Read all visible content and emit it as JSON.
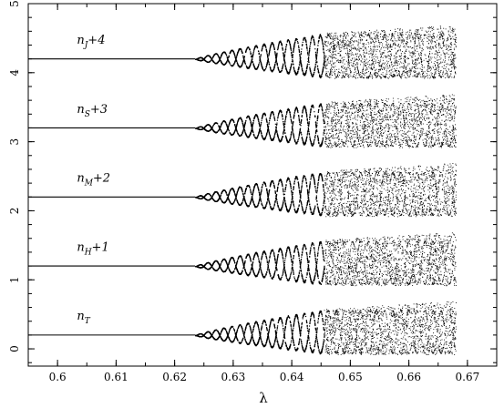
{
  "chart_data": {
    "type": "scatter",
    "title": "",
    "xlabel": "λ",
    "ylabel": "",
    "xlim": [
      0.595,
      0.675
    ],
    "ylim": [
      -0.25,
      5.0
    ],
    "xticks": [
      "0.6",
      "0.61",
      "0.62",
      "0.63",
      "0.64",
      "0.65",
      "0.66",
      "0.67"
    ],
    "yticks": [
      "0",
      "1",
      "2",
      "3",
      "4",
      "5"
    ],
    "grid": false,
    "legend": "none",
    "marker_color": "#000000",
    "bifurcation_start_lambda": 0.6235,
    "chaos_onset_lambda": 0.6455,
    "series": [
      {
        "name_main": "n",
        "name_sub": "T",
        "name_suffix": "",
        "offset": 0,
        "baseline": 0.2
      },
      {
        "name_main": "n",
        "name_sub": "H",
        "name_suffix": "+1",
        "offset": 1,
        "baseline": 1.2
      },
      {
        "name_main": "n",
        "name_sub": "M",
        "name_suffix": "+2",
        "offset": 2,
        "baseline": 2.2
      },
      {
        "name_main": "n",
        "name_sub": "S",
        "name_suffix": "+3",
        "offset": 3,
        "baseline": 3.2
      },
      {
        "name_main": "n",
        "name_sub": "J",
        "name_suffix": "+4",
        "offset": 4,
        "baseline": 4.2
      }
    ]
  }
}
